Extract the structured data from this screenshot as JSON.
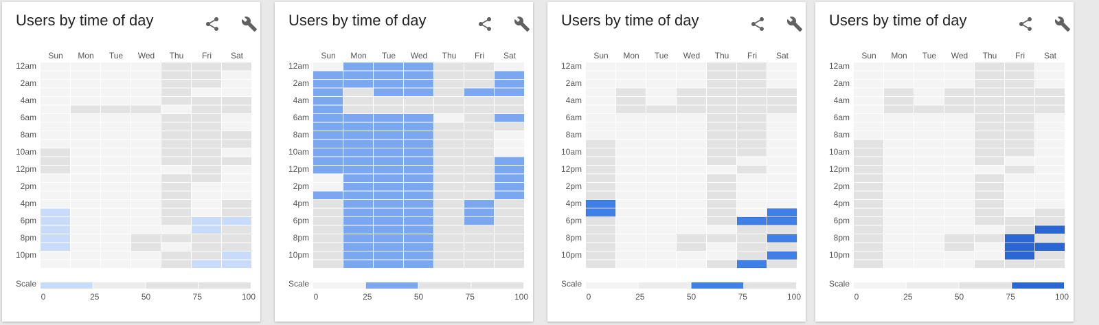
{
  "icons": {
    "share": "share-icon",
    "settings": "wrench-icon"
  },
  "colors": {
    "empty": "#f4f4f4",
    "grey_light": "#ececec",
    "grey_mid": "#e2e2e2",
    "level": [
      "#c8dbfb",
      "#7ba7f1",
      "#3f7fe8",
      "#2a66d4"
    ],
    "text": "#555555"
  },
  "chart_data": [
    {
      "type": "heatmap",
      "title": "Users by time of day",
      "days": [
        "Sun",
        "Mon",
        "Tue",
        "Wed",
        "Thu",
        "Fri",
        "Sat"
      ],
      "hour_labels": [
        "12am",
        "2am",
        "4am",
        "6am",
        "8am",
        "10am",
        "12pm",
        "2pm",
        "4pm",
        "6pm",
        "8pm",
        "10pm"
      ],
      "scale_label": "Scale",
      "scale_ticks": [
        "0",
        "25",
        "50",
        "75",
        "100"
      ],
      "highlight_range": [
        0,
        25
      ],
      "highlight_level": 0,
      "grid": [
        [
          0,
          0,
          0,
          0,
          2,
          2,
          2
        ],
        [
          0,
          0,
          0,
          0,
          2,
          2,
          0
        ],
        [
          0,
          0,
          0,
          0,
          2,
          2,
          0
        ],
        [
          0,
          0,
          0,
          0,
          2,
          0,
          0
        ],
        [
          0,
          0,
          0,
          0,
          2,
          2,
          2
        ],
        [
          0,
          2,
          2,
          2,
          0,
          2,
          2
        ],
        [
          0,
          0,
          0,
          0,
          2,
          2,
          0
        ],
        [
          0,
          0,
          0,
          0,
          2,
          2,
          0
        ],
        [
          0,
          0,
          0,
          0,
          2,
          2,
          2
        ],
        [
          0,
          0,
          0,
          0,
          2,
          2,
          2
        ],
        [
          2,
          0,
          0,
          0,
          2,
          2,
          0
        ],
        [
          2,
          0,
          0,
          0,
          2,
          2,
          2
        ],
        [
          2,
          0,
          0,
          0,
          0,
          2,
          0
        ],
        [
          0,
          0,
          0,
          0,
          2,
          2,
          0
        ],
        [
          0,
          0,
          0,
          0,
          2,
          0,
          0
        ],
        [
          0,
          0,
          0,
          0,
          2,
          0,
          0
        ],
        [
          0,
          0,
          0,
          0,
          2,
          0,
          2
        ],
        [
          1,
          0,
          0,
          0,
          2,
          0,
          2
        ],
        [
          1,
          0,
          0,
          0,
          2,
          1,
          1
        ],
        [
          1,
          0,
          0,
          0,
          0,
          1,
          2
        ],
        [
          1,
          0,
          0,
          2,
          2,
          2,
          2
        ],
        [
          1,
          0,
          0,
          2,
          0,
          2,
          2
        ],
        [
          0,
          0,
          0,
          0,
          2,
          2,
          1
        ],
        [
          0,
          0,
          0,
          0,
          2,
          1,
          1
        ]
      ]
    },
    {
      "type": "heatmap",
      "title": "Users by time of day",
      "days": [
        "Sun",
        "Mon",
        "Tue",
        "Wed",
        "Thu",
        "Fri",
        "Sat"
      ],
      "hour_labels": [
        "12am",
        "2am",
        "4am",
        "6am",
        "8am",
        "10am",
        "12pm",
        "2pm",
        "4pm",
        "6pm",
        "8pm",
        "10pm"
      ],
      "scale_label": "Scale",
      "scale_ticks": [
        "0",
        "25",
        "50",
        "75",
        "100"
      ],
      "highlight_range": [
        25,
        50
      ],
      "highlight_level": 1,
      "grid": [
        [
          0,
          1,
          1,
          1,
          2,
          2,
          0
        ],
        [
          1,
          1,
          1,
          1,
          2,
          2,
          1
        ],
        [
          1,
          1,
          1,
          1,
          2,
          2,
          1
        ],
        [
          1,
          2,
          1,
          1,
          2,
          1,
          1
        ],
        [
          1,
          2,
          2,
          2,
          2,
          2,
          2
        ],
        [
          1,
          2,
          2,
          2,
          2,
          2,
          2
        ],
        [
          1,
          1,
          1,
          1,
          0,
          2,
          1
        ],
        [
          1,
          1,
          1,
          1,
          2,
          2,
          2
        ],
        [
          1,
          1,
          1,
          1,
          2,
          2,
          0
        ],
        [
          1,
          1,
          1,
          1,
          2,
          2,
          0
        ],
        [
          1,
          1,
          1,
          1,
          2,
          2,
          0
        ],
        [
          1,
          1,
          1,
          1,
          2,
          2,
          1
        ],
        [
          1,
          1,
          1,
          1,
          2,
          2,
          1
        ],
        [
          0,
          1,
          1,
          1,
          2,
          2,
          1
        ],
        [
          0,
          1,
          1,
          1,
          2,
          2,
          1
        ],
        [
          1,
          1,
          1,
          1,
          2,
          2,
          1
        ],
        [
          2,
          1,
          1,
          1,
          2,
          1,
          2
        ],
        [
          2,
          1,
          1,
          1,
          2,
          1,
          2
        ],
        [
          2,
          1,
          1,
          1,
          2,
          1,
          2
        ],
        [
          2,
          1,
          1,
          1,
          2,
          2,
          2
        ],
        [
          2,
          1,
          1,
          1,
          2,
          2,
          2
        ],
        [
          2,
          1,
          1,
          1,
          2,
          2,
          2
        ],
        [
          2,
          1,
          1,
          1,
          2,
          2,
          2
        ],
        [
          2,
          1,
          1,
          1,
          2,
          2,
          2
        ]
      ]
    },
    {
      "type": "heatmap",
      "title": "Users by time of day",
      "days": [
        "Sun",
        "Mon",
        "Tue",
        "Wed",
        "Thu",
        "Fri",
        "Sat"
      ],
      "hour_labels": [
        "12am",
        "2am",
        "4am",
        "6am",
        "8am",
        "10am",
        "12pm",
        "2pm",
        "4pm",
        "6pm",
        "8pm",
        "10pm"
      ],
      "scale_label": "Scale",
      "scale_ticks": [
        "0",
        "25",
        "50",
        "75",
        "100"
      ],
      "highlight_range": [
        50,
        75
      ],
      "highlight_level": 2,
      "grid": [
        [
          0,
          0,
          0,
          0,
          2,
          2,
          0
        ],
        [
          0,
          0,
          0,
          0,
          2,
          2,
          0
        ],
        [
          0,
          0,
          0,
          0,
          2,
          2,
          0
        ],
        [
          0,
          2,
          0,
          2,
          2,
          2,
          2
        ],
        [
          0,
          2,
          0,
          2,
          2,
          2,
          2
        ],
        [
          0,
          2,
          2,
          2,
          2,
          2,
          2
        ],
        [
          0,
          0,
          0,
          0,
          2,
          2,
          0
        ],
        [
          0,
          0,
          0,
          0,
          2,
          2,
          0
        ],
        [
          0,
          0,
          0,
          0,
          2,
          2,
          0
        ],
        [
          2,
          0,
          0,
          0,
          2,
          2,
          0
        ],
        [
          2,
          0,
          0,
          0,
          2,
          2,
          0
        ],
        [
          2,
          0,
          0,
          0,
          2,
          0,
          0
        ],
        [
          2,
          0,
          0,
          0,
          0,
          2,
          0
        ],
        [
          2,
          0,
          0,
          0,
          2,
          0,
          0
        ],
        [
          2,
          0,
          0,
          0,
          2,
          0,
          0
        ],
        [
          2,
          0,
          0,
          0,
          2,
          0,
          0
        ],
        [
          3,
          0,
          0,
          0,
          2,
          0,
          0
        ],
        [
          3,
          0,
          0,
          0,
          2,
          0,
          3
        ],
        [
          2,
          0,
          0,
          0,
          2,
          3,
          3
        ],
        [
          2,
          0,
          0,
          0,
          0,
          2,
          2
        ],
        [
          2,
          0,
          0,
          2,
          2,
          2,
          3
        ],
        [
          2,
          0,
          0,
          2,
          0,
          2,
          2
        ],
        [
          2,
          0,
          0,
          0,
          0,
          2,
          3
        ],
        [
          2,
          0,
          0,
          0,
          2,
          3,
          2
        ]
      ]
    },
    {
      "type": "heatmap",
      "title": "Users by time of day",
      "days": [
        "Sun",
        "Mon",
        "Tue",
        "Wed",
        "Thu",
        "Fri",
        "Sat"
      ],
      "hour_labels": [
        "12am",
        "2am",
        "4am",
        "6am",
        "8am",
        "10am",
        "12pm",
        "2pm",
        "4pm",
        "6pm",
        "8pm",
        "10pm"
      ],
      "scale_label": "Scale",
      "scale_ticks": [
        "0",
        "25",
        "50",
        "75",
        "100"
      ],
      "highlight_range": [
        75,
        100
      ],
      "highlight_level": 3,
      "grid": [
        [
          0,
          0,
          0,
          0,
          2,
          2,
          0
        ],
        [
          0,
          0,
          0,
          0,
          2,
          2,
          0
        ],
        [
          0,
          0,
          0,
          0,
          2,
          2,
          0
        ],
        [
          0,
          2,
          0,
          2,
          2,
          2,
          2
        ],
        [
          0,
          2,
          0,
          2,
          2,
          2,
          2
        ],
        [
          0,
          2,
          2,
          2,
          2,
          2,
          2
        ],
        [
          0,
          0,
          0,
          0,
          2,
          2,
          0
        ],
        [
          0,
          0,
          0,
          0,
          2,
          2,
          0
        ],
        [
          0,
          0,
          0,
          0,
          2,
          2,
          0
        ],
        [
          2,
          0,
          0,
          0,
          2,
          2,
          0
        ],
        [
          2,
          0,
          0,
          0,
          2,
          2,
          0
        ],
        [
          2,
          0,
          0,
          0,
          2,
          0,
          0
        ],
        [
          2,
          0,
          0,
          0,
          0,
          2,
          0
        ],
        [
          2,
          0,
          0,
          0,
          2,
          0,
          0
        ],
        [
          2,
          0,
          0,
          0,
          2,
          0,
          0
        ],
        [
          2,
          0,
          0,
          0,
          2,
          0,
          0
        ],
        [
          2,
          0,
          0,
          0,
          2,
          0,
          0
        ],
        [
          2,
          0,
          0,
          0,
          2,
          0,
          2
        ],
        [
          2,
          0,
          0,
          0,
          2,
          2,
          2
        ],
        [
          2,
          0,
          0,
          0,
          0,
          2,
          3
        ],
        [
          2,
          0,
          0,
          2,
          2,
          3,
          2
        ],
        [
          2,
          0,
          0,
          2,
          0,
          3,
          3
        ],
        [
          2,
          0,
          0,
          0,
          0,
          3,
          2
        ],
        [
          2,
          0,
          0,
          0,
          2,
          2,
          2
        ]
      ]
    }
  ]
}
